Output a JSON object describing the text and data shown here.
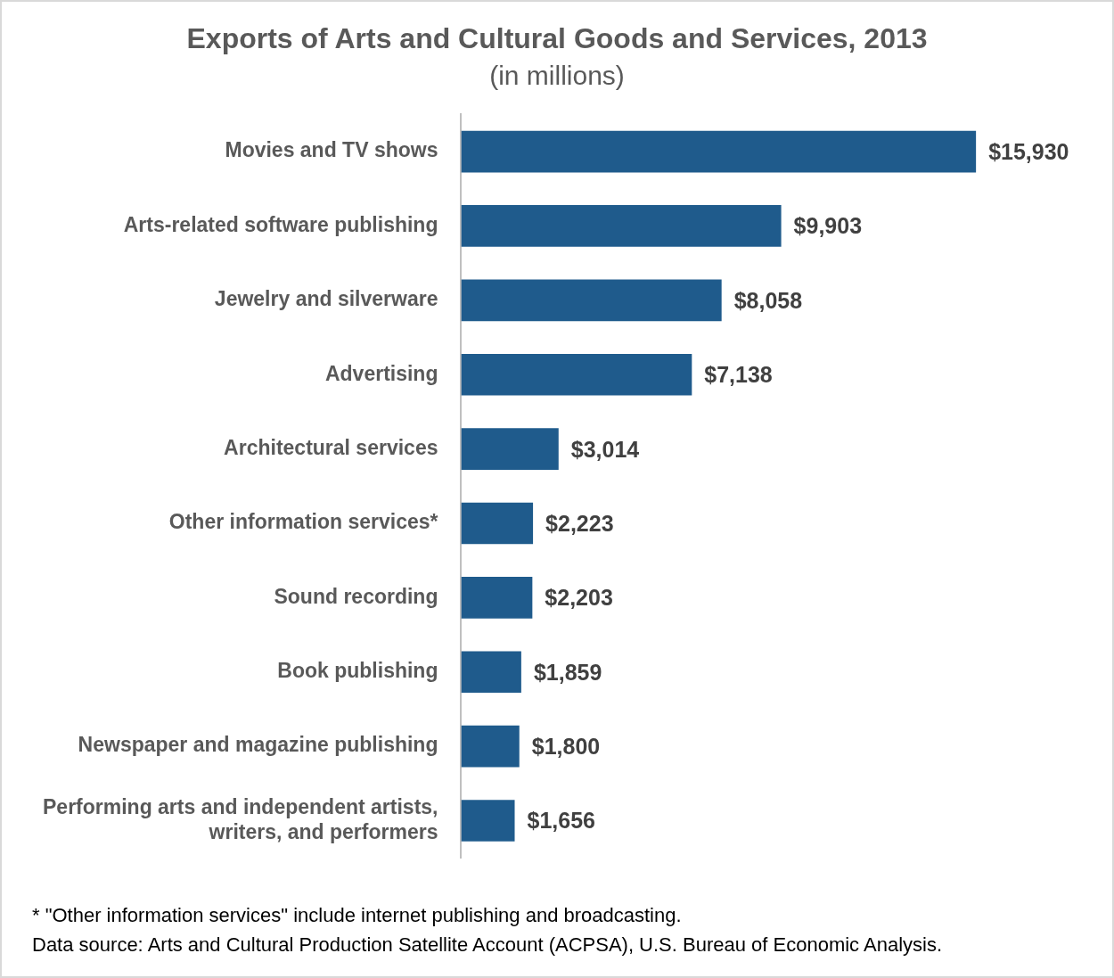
{
  "chart_data": {
    "type": "bar",
    "orientation": "horizontal",
    "title": "Exports of Arts and Cultural Goods and Services, 2013",
    "subtitle": "(in millions)",
    "categories": [
      "Movies and TV shows",
      "Arts-related software publishing",
      "Jewelry and silverware",
      "Advertising",
      "Architectural services",
      "Other information services*",
      "Sound recording",
      "Book publishing",
      "Newspaper and magazine publishing",
      "Performing arts and independent artists, writers, and performers"
    ],
    "values": [
      15930,
      9903,
      8058,
      7138,
      3014,
      2223,
      2203,
      1859,
      1800,
      1656
    ],
    "value_labels": [
      "$15,930",
      "$9,903",
      "$8,058",
      "$7,138",
      "$3,014",
      "$2,223",
      "$2,203",
      "$1,859",
      "$1,800",
      "$1,656"
    ],
    "color": "#1f5b8c",
    "grid": false,
    "legend": false,
    "tick_labels": "y",
    "annotations": [
      "* \"Other information services\" include internet publishing and broadcasting.",
      "Data source: Arts and Cultural Production Satellite Account (ACPSA), U.S. Bureau of Economic Analysis."
    ]
  }
}
